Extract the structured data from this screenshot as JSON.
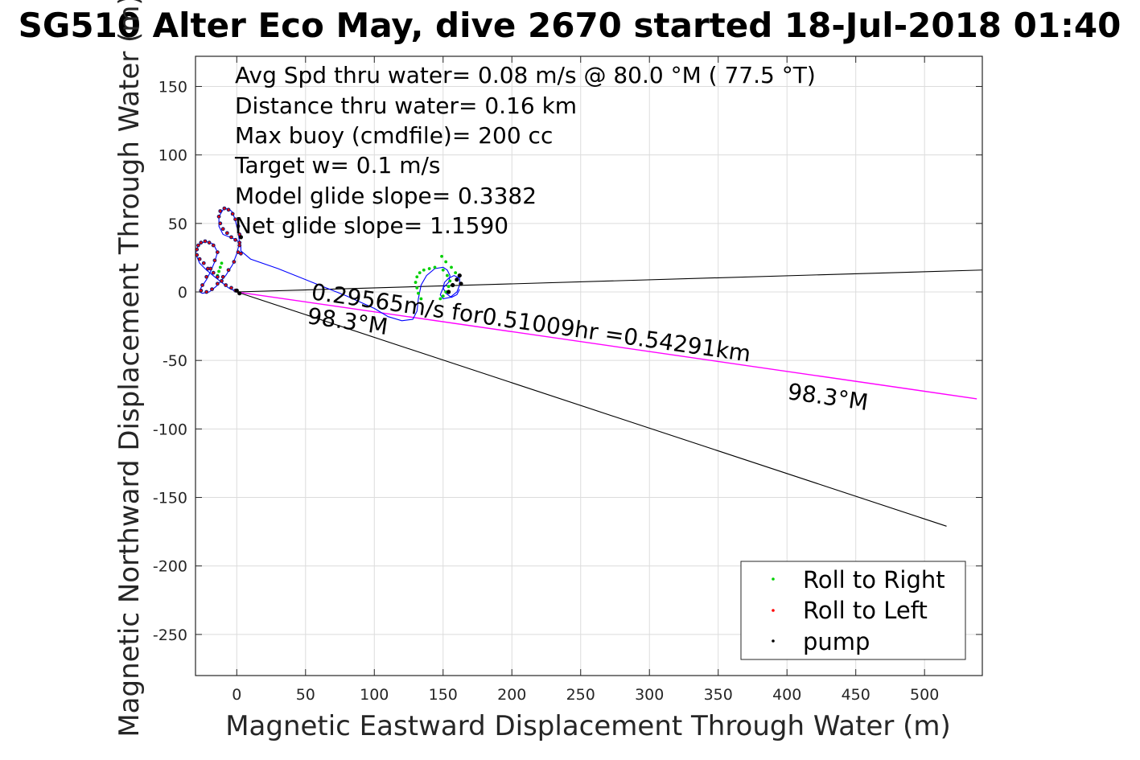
{
  "chart_data": {
    "type": "scatter",
    "title": "SG510 Alter Eco May, dive 2670 started 18-Jul-2018 01:40",
    "xlabel": "Magnetic Eastward Displacement Through Water (m)",
    "ylabel": "Magnetic Northward Displacement Through Water (m)",
    "xlim": [
      -30,
      542
    ],
    "ylim": [
      -280,
      172
    ],
    "xticks": [
      0,
      50,
      100,
      150,
      200,
      250,
      300,
      350,
      400,
      450,
      500
    ],
    "yticks": [
      150,
      100,
      50,
      0,
      -50,
      -100,
      -150,
      -200,
      -250
    ],
    "grid": true,
    "stats": [
      "Avg Spd thru water=  0.08 m/s @  80.0 °M ( 77.5 °T)",
      "Distance thru water=  0.16 km",
      "Max buoy (cmdfile)= 200 cc",
      "Target w= 0.1 m/s",
      "Model glide slope= 0.3382",
      "Net glide slope= 1.1590"
    ],
    "annotations": {
      "current_line_label": "0.29565m/s for0.51009hr =0.54291km",
      "heading_label_1": "98.3°M",
      "heading_label_2": "98.3°M"
    },
    "lines": {
      "current": {
        "color": "#ff00ff",
        "x": [
          0,
          538
        ],
        "y": [
          0,
          -78
        ]
      },
      "heading_a": {
        "color": "#000000",
        "x": [
          0,
          542
        ],
        "y": [
          0,
          16
        ]
      },
      "heading_b": {
        "color": "#000000",
        "x": [
          0,
          516
        ],
        "y": [
          0,
          -171
        ]
      }
    },
    "track": {
      "color": "#0000ff",
      "x": [
        0,
        -6,
        -11,
        -16,
        -22,
        -27,
        -30,
        -28,
        -23,
        -17,
        -14,
        -16,
        -19,
        -22,
        -26,
        -27,
        -25,
        -20,
        -15,
        -8,
        -3,
        0,
        2,
        1,
        -1,
        -3,
        -6,
        -10,
        -13,
        -13,
        -10,
        -5,
        0,
        3,
        3,
        10,
        30,
        55,
        80,
        100,
        110,
        120,
        128,
        131,
        132,
        134,
        138,
        144,
        150,
        153,
        155,
        154,
        150,
        148,
        150,
        155,
        160,
        162,
        162,
        158,
        154,
        151,
        150,
        152,
        156,
        160,
        162
      ],
      "y": [
        0,
        3,
        7,
        11,
        16,
        21,
        28,
        34,
        37,
        35,
        29,
        22,
        15,
        9,
        3,
        0,
        -1,
        0,
        4,
        12,
        20,
        28,
        36,
        44,
        52,
        58,
        61,
        60,
        55,
        48,
        42,
        40,
        38,
        34,
        30,
        24,
        17,
        7,
        -3,
        -12,
        -18,
        -21,
        -20,
        -14,
        -5,
        5,
        12,
        17,
        18,
        16,
        12,
        7,
        3,
        -2,
        -5,
        -4,
        0,
        5,
        10,
        12,
        10,
        7,
        3,
        -1,
        -4,
        -2,
        2
      ]
    },
    "series": [
      {
        "name": "Roll to Right",
        "color": "#00d000",
        "x": [
          -14,
          -13,
          -12,
          -11,
          134,
          132,
          131,
          130,
          131,
          133,
          136,
          140,
          144,
          150,
          153,
          155,
          154,
          152,
          150,
          148,
          149,
          152,
          156,
          159
        ],
        "y": [
          12,
          15,
          18,
          21,
          -5,
          -1,
          3,
          7,
          11,
          14,
          16,
          17,
          18,
          16,
          12,
          8,
          4,
          0,
          -3,
          -5,
          26,
          22,
          18,
          14
        ]
      },
      {
        "name": "Roll to Left",
        "color": "#ff0000",
        "x": [
          -1,
          -4,
          -8,
          -11,
          -14,
          -17,
          -21,
          -24,
          -27,
          -29,
          -29,
          -28,
          -26,
          -23,
          -20,
          -17,
          -14,
          -16,
          -19,
          -22,
          -25,
          -26,
          -22,
          -18,
          -14,
          -10,
          -6,
          -2,
          1,
          2,
          2,
          1,
          -1,
          -3,
          -6,
          -9,
          -12,
          -13,
          -12,
          -10,
          -7,
          -4,
          -1,
          2,
          3
        ],
        "y": [
          1,
          3,
          5,
          8,
          11,
          14,
          17,
          21,
          24,
          27,
          31,
          34,
          36,
          37,
          36,
          34,
          29,
          23,
          17,
          11,
          5,
          1,
          0,
          2,
          6,
          11,
          16,
          22,
          29,
          36,
          42,
          48,
          53,
          57,
          60,
          61,
          59,
          55,
          50,
          46,
          43,
          40,
          38,
          34,
          28
        ],
        "ring_color": "#1a1a6e"
      },
      {
        "name": "pump",
        "color": "#000000",
        "x": [
          2,
          0,
          3,
          157,
          160,
          162,
          163,
          154
        ],
        "y": [
          -1,
          1,
          40,
          5,
          9,
          12,
          6,
          0
        ]
      }
    ],
    "legend": {
      "position": "bottom-right",
      "entries": [
        "Roll to Right",
        "Roll to Left",
        "pump"
      ]
    }
  }
}
